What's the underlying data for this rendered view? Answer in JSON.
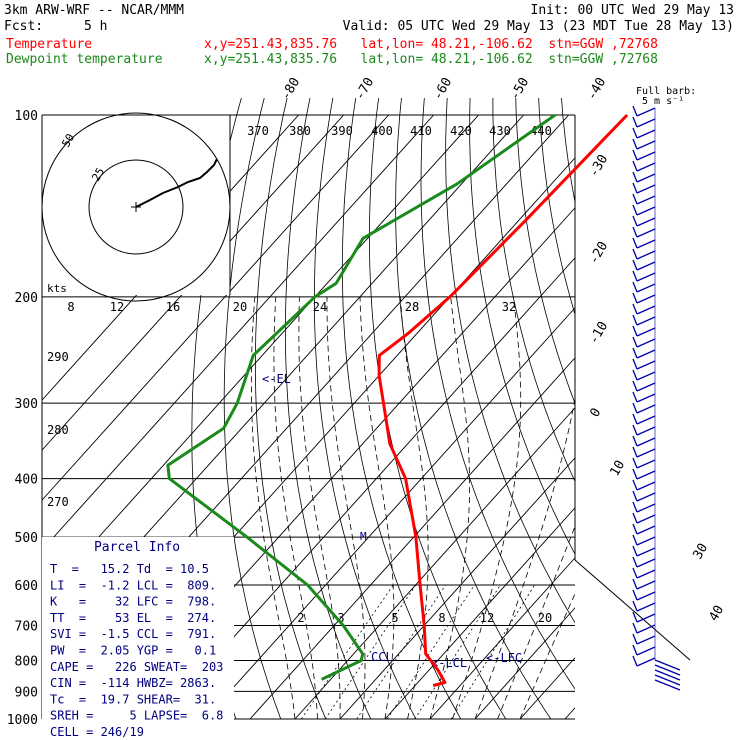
{
  "header": {
    "model": "3km ARW-WRF -- NCAR/MMM",
    "init": "Init: 00 UTC Wed 29 May 13",
    "fcst_label": "Fcst:",
    "fcst_value": "5 h",
    "valid": "Valid: 05 UTC Wed 29 May 13 (23 MDT Tue 28 May 13)"
  },
  "legend": [
    {
      "name": "Temperature",
      "info": "x,y=251.43,835.76   lat,lon= 48.21,-106.62  stn=GGW ,72768",
      "color": "#ff0000"
    },
    {
      "name": "Dewpoint temperature",
      "info": "x,y=251.43,835.76   lat,lon= 48.21,-106.62  stn=GGW ,72768",
      "color": "#1a8a1a"
    }
  ],
  "barb_label": {
    "line1": "Full barb:",
    "line2": "5 m s⁻¹"
  },
  "parcel_info": {
    "title": "Parcel Info",
    "rows": [
      "T  =   15.2 Td  = 10.5",
      "LI  =  -1.2 LCL =  809.",
      "K   =    32 LFC =  798.",
      "TT  =    53 EL  =  274.",
      "SVI =  -1.5 CCL =  791.",
      "PW  =  2.05 YGP =   0.1",
      "CAPE =   226 SWEAT=  203",
      "CIN =  -114 HWBZ= 2863.",
      "Tc  =  19.7 SHEAR=  31.",
      "SREH =     5 LAPSE=  6.8",
      "CELL = 246/19"
    ]
  },
  "hodograph": {
    "units": "kts",
    "ring_labels": [
      "25",
      "50"
    ]
  },
  "chart_data": {
    "type": "line",
    "title": "",
    "ylabel": "",
    "pressure_axis": {
      "scale": "log",
      "range": [
        1000,
        100
      ],
      "ticks": [
        100,
        200,
        300,
        400,
        500,
        600,
        700,
        800,
        900,
        1000
      ]
    },
    "isotherm_labels": [
      "-80",
      "-70",
      "-60",
      "-50",
      "-40",
      "-30",
      "-20",
      "-10",
      "0",
      "10",
      "30",
      "40"
    ],
    "theta_e_labels": [
      "370",
      "380",
      "390",
      "400",
      "410",
      "420",
      "430",
      "440"
    ],
    "mixing_ratio_labels_upper": [
      "8",
      "12",
      "16",
      "20",
      "24",
      "28",
      "32"
    ],
    "mixing_ratio_labels_lower": [
      "2",
      "3",
      "5",
      "8",
      "12",
      "20"
    ],
    "theta_labels": [
      "290",
      "280",
      "270"
    ],
    "markers": [
      "<-EL",
      "<-LCL",
      "<-LFC",
      "CCL"
    ],
    "series": [
      {
        "name": "Temperature",
        "color": "#ff0000",
        "p": [
          100,
          150,
          200,
          230,
          250,
          270,
          300,
          350,
          400,
          500,
          600,
          700,
          780,
          830,
          870,
          880
        ],
        "t": [
          -57,
          -58.5,
          -60,
          -62,
          -64,
          -60,
          -53.5,
          -44,
          -33.5,
          -19.5,
          -9,
          0,
          6,
          12,
          16,
          14
        ]
      },
      {
        "name": "Dewpoint temperature",
        "color": "#1a8a1a",
        "p": [
          100,
          130,
          160,
          190,
          200,
          250,
          300,
          330,
          380,
          400,
          500,
          600,
          700,
          780,
          800,
          860
        ],
        "t": [
          -73,
          -81,
          -91,
          -88,
          -90,
          -92,
          -86,
          -84,
          -89,
          -86,
          -57,
          -34,
          -18,
          -8,
          -7,
          -12
        ]
      }
    ]
  }
}
